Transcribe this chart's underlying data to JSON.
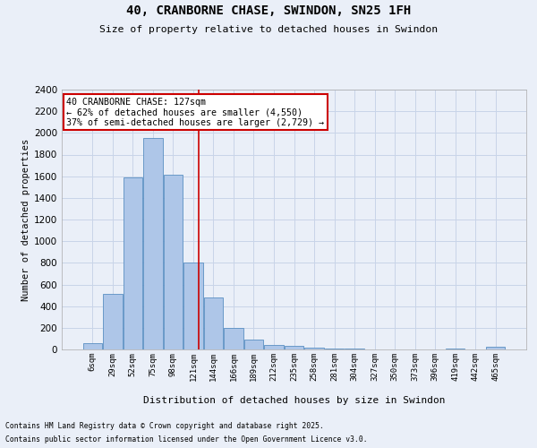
{
  "title": "40, CRANBORNE CHASE, SWINDON, SN25 1FH",
  "subtitle": "Size of property relative to detached houses in Swindon",
  "xlabel": "Distribution of detached houses by size in Swindon",
  "ylabel": "Number of detached properties",
  "footnote1": "Contains HM Land Registry data © Crown copyright and database right 2025.",
  "footnote2": "Contains public sector information licensed under the Open Government Licence v3.0.",
  "categories": [
    "6sqm",
    "29sqm",
    "52sqm",
    "75sqm",
    "98sqm",
    "121sqm",
    "144sqm",
    "166sqm",
    "189sqm",
    "212sqm",
    "235sqm",
    "258sqm",
    "281sqm",
    "304sqm",
    "327sqm",
    "350sqm",
    "373sqm",
    "396sqm",
    "419sqm",
    "442sqm",
    "465sqm"
  ],
  "bar_heights": [
    55,
    510,
    1590,
    1950,
    1610,
    800,
    480,
    200,
    95,
    45,
    35,
    20,
    10,
    10,
    0,
    0,
    0,
    0,
    5,
    0,
    25
  ],
  "bar_color": "#aec6e8",
  "bar_edge_color": "#5a8fc2",
  "grid_color": "#c8d4e8",
  "bg_color": "#eaeff8",
  "vline_color": "#cc0000",
  "annotation_title": "40 CRANBORNE CHASE: 127sqm",
  "annotation_line1": "← 62% of detached houses are smaller (4,550)",
  "annotation_line2": "37% of semi-detached houses are larger (2,729) →",
  "annotation_box_color": "#cc0000",
  "ylim": [
    0,
    2400
  ],
  "yticks": [
    0,
    200,
    400,
    600,
    800,
    1000,
    1200,
    1400,
    1600,
    1800,
    2000,
    2200,
    2400
  ],
  "vline_index": 5.26
}
